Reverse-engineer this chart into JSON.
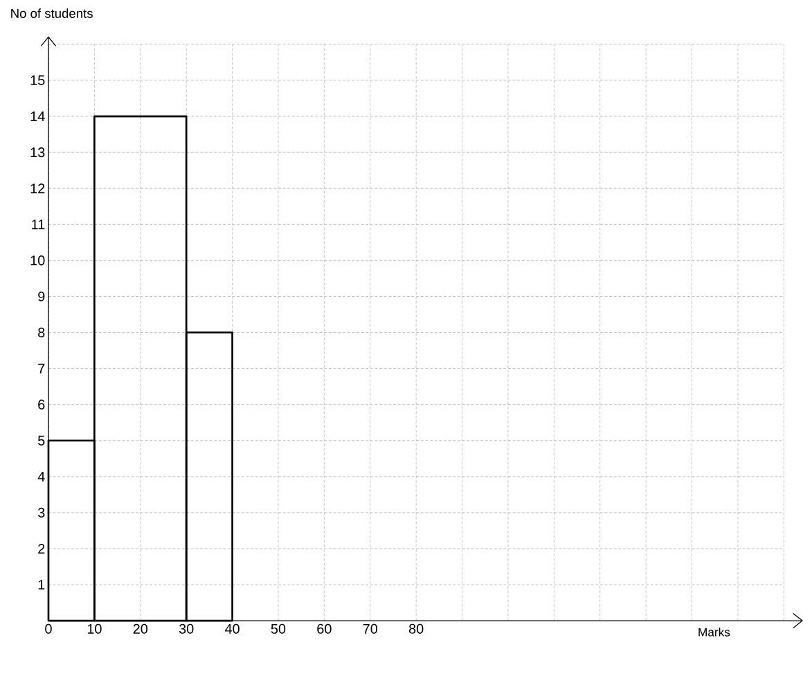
{
  "chart_data": {
    "type": "histogram",
    "xlabel": "Marks",
    "ylabel": "No of students",
    "bins": [
      0,
      10,
      30,
      40
    ],
    "values": [
      5,
      14,
      8
    ],
    "color": "#000000",
    "xlim": [
      0,
      160
    ],
    "ylim": [
      0,
      16
    ],
    "xticks": [
      0,
      10,
      20,
      30,
      40,
      50,
      60,
      70,
      80,
      {
        "value": 90,
        "label": null
      },
      {
        "value": 100,
        "label": null
      },
      {
        "value": 110,
        "label": null
      },
      {
        "value": 120,
        "label": null
      },
      {
        "value": 130,
        "label": null
      },
      {
        "value": 140,
        "label": null
      },
      {
        "value": 150,
        "label": null
      },
      {
        "value": 160,
        "label": null
      }
    ],
    "yticks": [
      1,
      2,
      3,
      4,
      5,
      6,
      7,
      8,
      9,
      10,
      11,
      12,
      13,
      14,
      15,
      {
        "value": 16,
        "label": null
      }
    ],
    "grid": true
  }
}
